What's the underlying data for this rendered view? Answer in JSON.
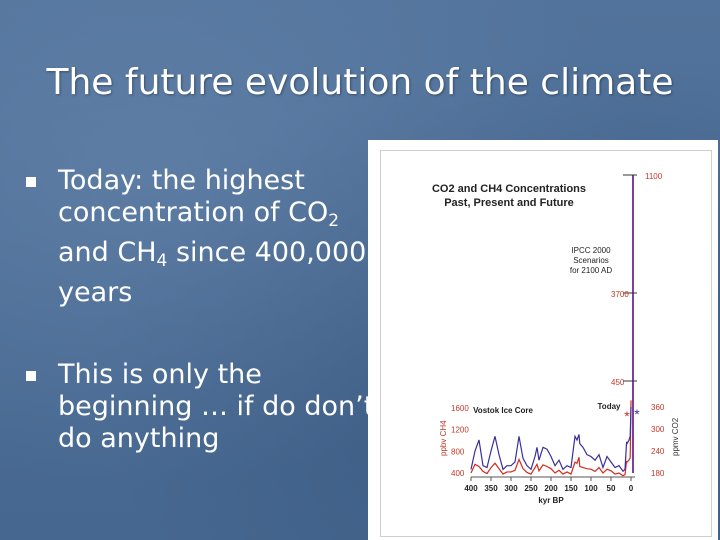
{
  "slide": {
    "title": "The future evolution of the climate",
    "bullets": [
      {
        "pre": "Today: the highest concentration of CO",
        "sub1": "2",
        "mid": " and CH",
        "sub2": "4",
        "post": " since 400,000 years"
      },
      {
        "text": "This is only the beginning … if do don’t do anything"
      }
    ]
  },
  "colors": {
    "co2": "#3a2f9c",
    "ch4": "#d42a1e",
    "axis": "#c0392b"
  },
  "chart_data": {
    "type": "line",
    "title": "CO2 and CH4 Concentrations",
    "subtitle": "Past, Present and Future",
    "scenario_label": "IPCC 2000 Scenarios for 2100 AD",
    "scenario_lines": [
      "IPCC 2000",
      "Scenarios",
      "for 2100 AD"
    ],
    "vostok_label": "Vostok Ice Core",
    "today_label": "Today",
    "xlabel": "kyr BP",
    "x_ticks": [
      400,
      350,
      300,
      250,
      200,
      150,
      100,
      50,
      0
    ],
    "left_axis_label": "ppbv CH4",
    "left_ticks": [
      1600,
      1200,
      800,
      400
    ],
    "right_axis_label": "ppmv CO2",
    "right_ticks": [
      360,
      300,
      240,
      180
    ],
    "scenario_ticks": [
      1100,
      3700,
      450
    ],
    "series": [
      {
        "name": "CO2",
        "x": [
          400,
          390,
          380,
          370,
          360,
          350,
          340,
          330,
          320,
          310,
          300,
          290,
          280,
          270,
          260,
          250,
          240,
          235,
          230,
          220,
          210,
          200,
          190,
          180,
          170,
          160,
          150,
          140,
          135,
          130,
          128,
          120,
          110,
          100,
          90,
          80,
          70,
          60,
          50,
          40,
          30,
          20,
          15,
          11,
          10,
          5,
          2,
          0
        ],
        "y": [
          190,
          240,
          270,
          200,
          195,
          240,
          280,
          230,
          190,
          200,
          200,
          210,
          280,
          220,
          200,
          190,
          225,
          250,
          215,
          250,
          245,
          225,
          200,
          215,
          190,
          200,
          195,
          280,
          270,
          285,
          260,
          250,
          230,
          225,
          215,
          230,
          195,
          225,
          210,
          195,
          200,
          185,
          190,
          265,
          260,
          270,
          280,
          360
        ]
      },
      {
        "name": "CH4",
        "x": [
          400,
          390,
          380,
          370,
          360,
          350,
          340,
          330,
          320,
          310,
          300,
          290,
          280,
          270,
          260,
          250,
          240,
          235,
          230,
          220,
          210,
          200,
          190,
          180,
          170,
          160,
          150,
          140,
          135,
          130,
          128,
          120,
          110,
          100,
          90,
          80,
          70,
          60,
          50,
          40,
          30,
          20,
          15,
          11,
          10,
          5,
          2,
          0
        ],
        "y": [
          400,
          560,
          520,
          430,
          390,
          500,
          580,
          480,
          380,
          420,
          420,
          450,
          650,
          480,
          410,
          380,
          500,
          560,
          440,
          550,
          520,
          480,
          400,
          450,
          380,
          420,
          380,
          600,
          580,
          690,
          520,
          500,
          480,
          470,
          430,
          500,
          400,
          470,
          440,
          380,
          400,
          350,
          370,
          620,
          600,
          640,
          680,
          1740
        ]
      }
    ]
  }
}
